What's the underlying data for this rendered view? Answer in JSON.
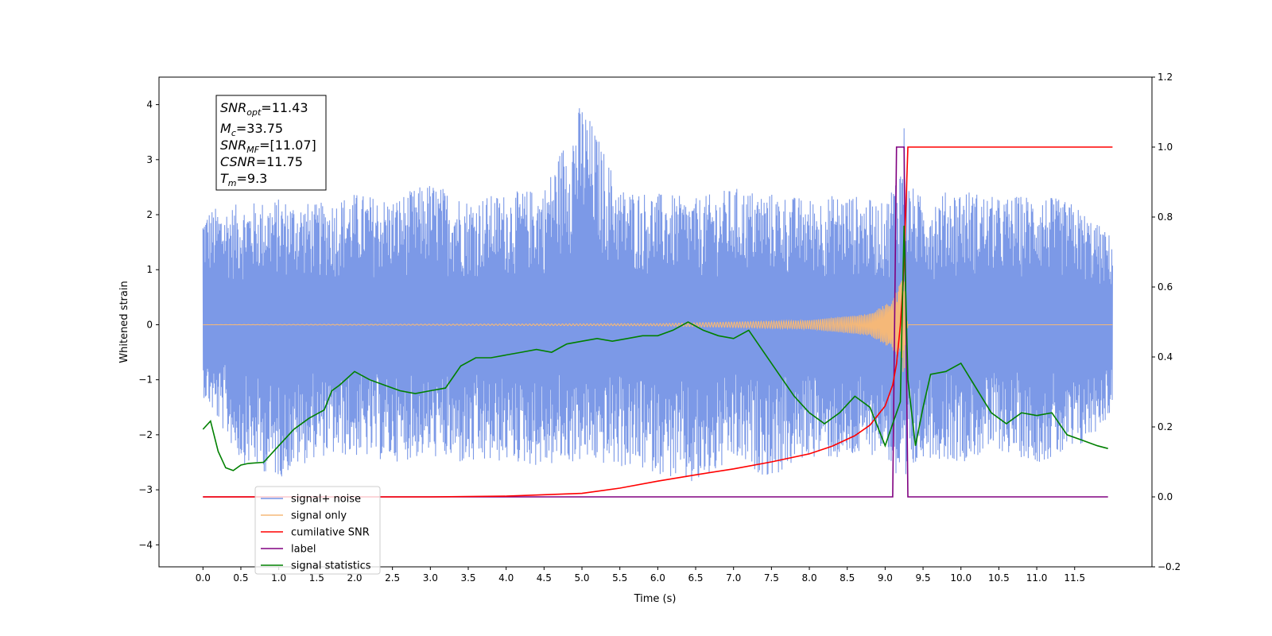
{
  "chart_data": {
    "type": "line",
    "xlabel": "Time (s)",
    "ylabel_left": "Whitened strain",
    "ylabel_right": "",
    "xlim": [
      -0.58,
      12.52
    ],
    "ylim_left": [
      -4.4,
      4.5
    ],
    "ylim_right": [
      -0.2,
      1.2
    ],
    "x_ticks": [
      "0.0",
      "0.5",
      "1.0",
      "1.5",
      "2.0",
      "2.5",
      "3.0",
      "3.5",
      "4.0",
      "4.5",
      "5.0",
      "5.5",
      "6.0",
      "6.5",
      "7.0",
      "7.5",
      "8.0",
      "8.5",
      "9.0",
      "9.5",
      "10.0",
      "10.5",
      "11.0",
      "11.5"
    ],
    "y_ticks_left": [
      "4",
      "3",
      "2",
      "1",
      "0",
      "−1",
      "−2",
      "−3",
      "−4"
    ],
    "y_ticks_right": [
      "1.2",
      "1.0",
      "0.8",
      "0.6",
      "0.4",
      "0.2",
      "0.0",
      "−0.2"
    ],
    "grid": false,
    "legend_position": "lower-left",
    "annotation": {
      "snr_opt": {
        "name": "SNR",
        "sub": "opt",
        "value": "=11.43"
      },
      "mc": {
        "name": "M",
        "sub": "c",
        "value": "=33.75"
      },
      "snr_mf": {
        "name": "SNR",
        "sub": "MF",
        "value": "=[11.07]"
      },
      "csnr": {
        "name": "CSNR",
        "sub": "",
        "value": "=11.75"
      },
      "tm": {
        "name": "T",
        "sub": "m",
        "value": "=9.3"
      }
    },
    "series": [
      {
        "name": "signal+ noise",
        "color": "#7593e6",
        "axis": "left",
        "envelope_x": [
          0.0,
          0.5,
          1.0,
          1.5,
          2.0,
          2.5,
          3.0,
          3.5,
          4.0,
          4.5,
          5.0,
          5.5,
          6.0,
          6.5,
          7.0,
          7.5,
          8.0,
          8.5,
          9.0,
          9.2,
          9.25,
          9.3,
          9.5,
          10.0,
          10.5,
          11.0,
          11.5,
          12.0
        ],
        "envelope_upper": [
          2.1,
          2.2,
          2.3,
          2.2,
          2.4,
          2.3,
          2.6,
          2.3,
          2.4,
          2.5,
          4.1,
          2.5,
          2.4,
          2.3,
          2.5,
          2.4,
          2.3,
          2.4,
          2.2,
          3.0,
          3.75,
          2.6,
          2.3,
          2.5,
          2.3,
          2.4,
          2.2,
          1.6
        ],
        "envelope_lower": [
          -1.3,
          -2.5,
          -2.8,
          -2.4,
          -2.4,
          -2.5,
          -2.4,
          -2.6,
          -2.5,
          -2.6,
          -2.5,
          -2.6,
          -2.7,
          -3.0,
          -2.5,
          -2.8,
          -2.4,
          -2.5,
          -2.3,
          -3.1,
          -3.75,
          -2.9,
          -2.4,
          -2.5,
          -2.3,
          -2.5,
          -2.4,
          -1.6
        ]
      },
      {
        "name": "signal only",
        "color": "#f5b878",
        "axis": "left",
        "description_points": {
          "x": [
            0.0,
            6.0,
            8.0,
            8.8,
            9.1,
            9.25,
            9.3,
            12.0
          ],
          "amplitude": [
            0.0,
            0.02,
            0.08,
            0.2,
            0.45,
            0.9,
            0.0,
            0.0
          ]
        }
      },
      {
        "name": "cumilative SNR",
        "color": "#ff0000",
        "axis": "right",
        "x": [
          0.0,
          3.0,
          4.0,
          5.0,
          5.5,
          6.0,
          6.5,
          7.0,
          7.5,
          8.0,
          8.3,
          8.6,
          8.8,
          9.0,
          9.1,
          9.15,
          9.2,
          9.24,
          9.27,
          9.3,
          9.32,
          12.0
        ],
        "values": [
          0.0,
          0.0,
          0.002,
          0.01,
          0.025,
          0.045,
          0.063,
          0.08,
          0.1,
          0.123,
          0.145,
          0.175,
          0.205,
          0.26,
          0.32,
          0.38,
          0.49,
          0.62,
          0.8,
          1.0,
          1.0,
          1.0
        ]
      },
      {
        "name": "label",
        "color": "#800080",
        "axis": "right",
        "x": [
          0.0,
          9.1,
          9.15,
          9.25,
          9.3,
          11.94
        ],
        "values": [
          0.0,
          0.0,
          1.0,
          1.0,
          0.0,
          0.0
        ]
      },
      {
        "name": "signal statistics",
        "color": "#008000",
        "axis": "left",
        "x": [
          0.0,
          0.1,
          0.2,
          0.3,
          0.4,
          0.5,
          0.6,
          0.8,
          1.0,
          1.2,
          1.4,
          1.6,
          1.7,
          1.8,
          2.0,
          2.2,
          2.4,
          2.6,
          2.8,
          3.0,
          3.2,
          3.4,
          3.6,
          3.8,
          4.0,
          4.2,
          4.4,
          4.6,
          4.8,
          5.0,
          5.2,
          5.4,
          5.6,
          5.8,
          6.0,
          6.2,
          6.4,
          6.6,
          6.8,
          7.0,
          7.2,
          7.4,
          7.6,
          7.8,
          8.0,
          8.2,
          8.4,
          8.6,
          8.8,
          9.0,
          9.1,
          9.2,
          9.25,
          9.3,
          9.4,
          9.5,
          9.6,
          9.8,
          10.0,
          10.2,
          10.4,
          10.6,
          10.8,
          11.0,
          11.2,
          11.4,
          11.6,
          11.8,
          11.94
        ],
        "values": [
          -1.9,
          -1.75,
          -2.3,
          -2.6,
          -2.65,
          -2.55,
          -2.52,
          -2.5,
          -2.2,
          -1.9,
          -1.7,
          -1.55,
          -1.2,
          -1.1,
          -0.85,
          -1.0,
          -1.1,
          -1.2,
          -1.25,
          -1.2,
          -1.15,
          -0.75,
          -0.6,
          -0.6,
          -0.55,
          -0.5,
          -0.45,
          -0.5,
          -0.35,
          -0.3,
          -0.25,
          -0.3,
          -0.25,
          -0.2,
          -0.2,
          -0.1,
          0.05,
          -0.1,
          -0.2,
          -0.25,
          -0.1,
          -0.5,
          -0.9,
          -1.3,
          -1.6,
          -1.8,
          -1.6,
          -1.3,
          -1.5,
          -2.2,
          -1.8,
          -1.4,
          1.8,
          -1.0,
          -2.2,
          -1.5,
          -0.9,
          -0.85,
          -0.7,
          -1.15,
          -1.6,
          -1.8,
          -1.6,
          -1.65,
          -1.6,
          -2.0,
          -2.1,
          -2.2,
          -2.25
        ]
      }
    ]
  }
}
